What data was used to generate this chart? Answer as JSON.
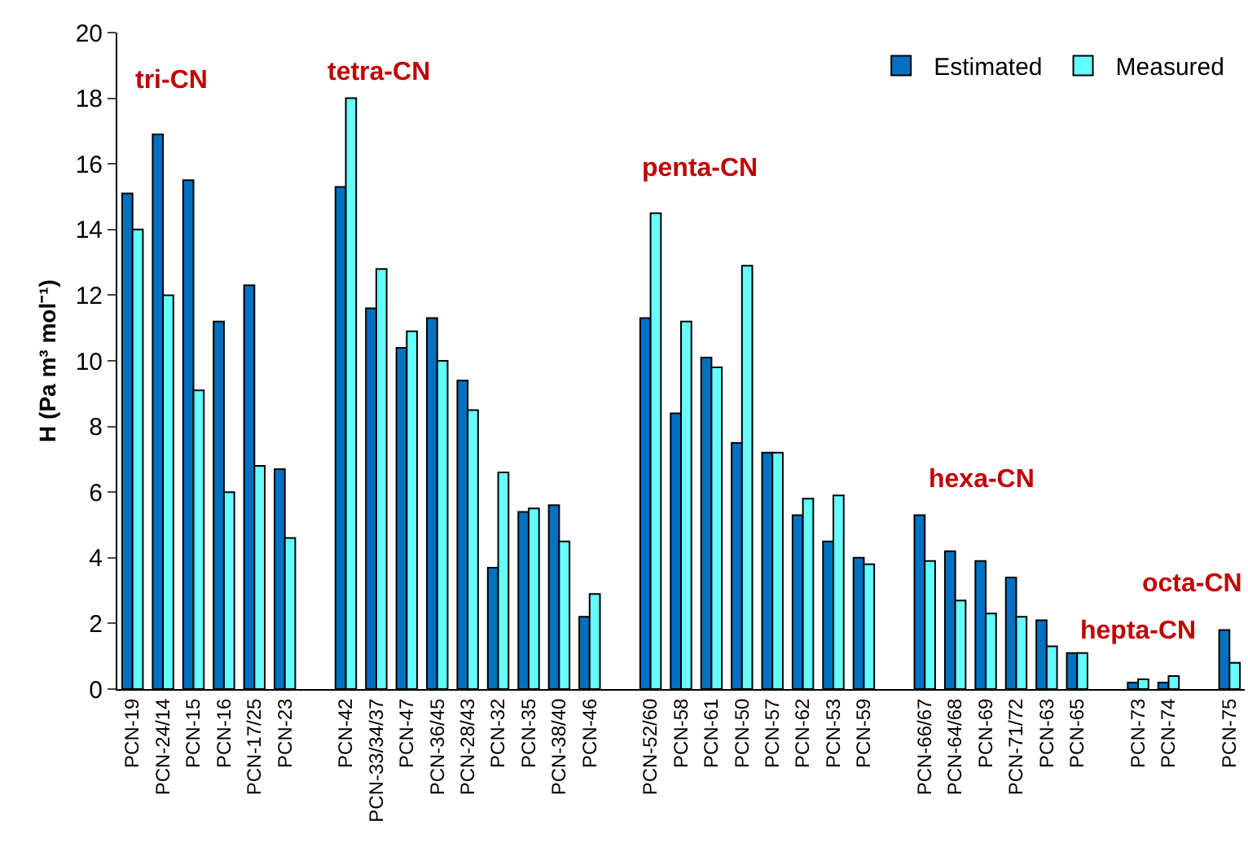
{
  "chart_data": {
    "type": "bar",
    "ylabel": "H (Pa m³ mol⁻¹)",
    "categories": [
      "PCN-19",
      "PCN-24/14",
      "PCN-15",
      "PCN-16",
      "PCN-17/25",
      "PCN-23",
      null,
      "PCN-42",
      "PCN-33/34/37",
      "PCN-47",
      "PCN-36/45",
      "PCN-28/43",
      "PCN-32",
      "PCN-35",
      "PCN-38/40",
      "PCN-46",
      null,
      "PCN-52/60",
      "PCN-58",
      "PCN-61",
      "PCN-50",
      "PCN-57",
      "PCN-62",
      "PCN-53",
      "PCN-59",
      null,
      "PCN-66/67",
      "PCN-64/68",
      "PCN-69",
      "PCN-71/72",
      "PCN-63",
      "PCN-65",
      null,
      "PCN-73",
      "PCN-74",
      null,
      "PCN-75"
    ],
    "series": [
      {
        "name": "Estimated",
        "color": "#0070c0",
        "values": [
          15.1,
          16.9,
          15.5,
          11.2,
          12.3,
          6.7,
          null,
          15.3,
          11.6,
          10.4,
          11.3,
          9.4,
          3.7,
          5.4,
          5.6,
          2.2,
          null,
          11.3,
          8.4,
          10.1,
          7.5,
          7.2,
          5.3,
          4.5,
          4.0,
          null,
          5.3,
          4.2,
          3.9,
          3.4,
          2.1,
          1.1,
          null,
          0.2,
          0.2,
          null,
          1.8
        ]
      },
      {
        "name": "Measured",
        "color": "#66ffff",
        "values": [
          14.0,
          12.0,
          9.1,
          6.0,
          6.8,
          4.6,
          null,
          18.0,
          12.8,
          10.9,
          10.0,
          8.5,
          6.6,
          5.5,
          4.5,
          2.9,
          null,
          14.5,
          11.2,
          9.8,
          12.9,
          7.2,
          5.8,
          5.9,
          3.8,
          null,
          3.9,
          2.7,
          2.3,
          2.2,
          1.3,
          1.1,
          null,
          0.3,
          0.4,
          null,
          0.8
        ]
      }
    ],
    "ylim": [
      0,
      20
    ],
    "yticks": [
      0,
      2,
      4,
      6,
      8,
      10,
      12,
      14,
      16,
      18,
      20
    ],
    "grid": false,
    "legend": "top right",
    "annotations": [
      "tri-CN",
      "tetra-CN",
      "penta-CN",
      "hexa-CN",
      "hepta-CN",
      "octa-CN"
    ]
  }
}
